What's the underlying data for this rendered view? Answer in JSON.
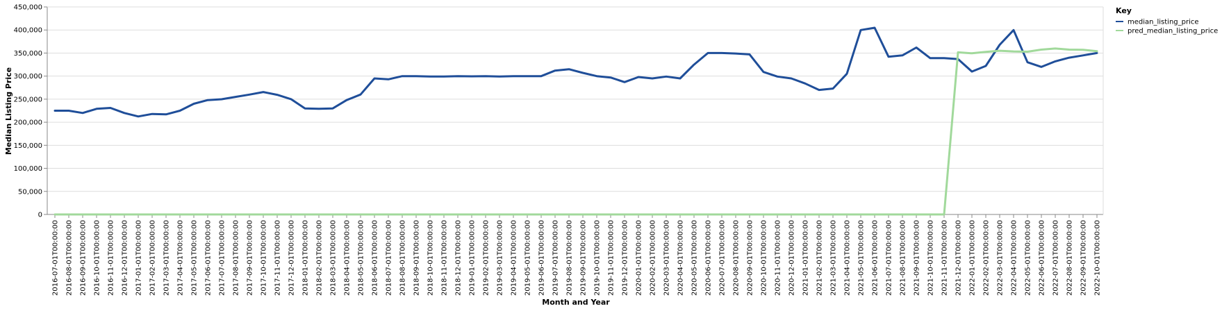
{
  "chart_data": {
    "type": "line",
    "title": "",
    "xlabel": "Month and Year",
    "ylabel": "Median Listing Price",
    "ylim": [
      0,
      450000
    ],
    "y_ticks": [
      "0",
      "50,000",
      "100,000",
      "150,000",
      "200,000",
      "250,000",
      "300,000",
      "350,000",
      "400,000",
      "450,000"
    ],
    "y_tick_values": [
      0,
      50000,
      100000,
      150000,
      200000,
      250000,
      300000,
      350000,
      400000,
      450000
    ],
    "grid": true,
    "legend_position": "right",
    "legend_title": "Key",
    "x": [
      "2016-07-01T00:00:00",
      "2016-08-01T00:00:00",
      "2016-09-01T00:00:00",
      "2016-10-01T00:00:00",
      "2016-11-01T00:00:00",
      "2016-12-01T00:00:00",
      "2017-01-01T00:00:00",
      "2017-02-01T00:00:00",
      "2017-03-01T00:00:00",
      "2017-04-01T00:00:00",
      "2017-05-01T00:00:00",
      "2017-06-01T00:00:00",
      "2017-07-01T00:00:00",
      "2017-08-01T00:00:00",
      "2017-09-01T00:00:00",
      "2017-10-01T00:00:00",
      "2017-11-01T00:00:00",
      "2017-12-01T00:00:00",
      "2018-01-01T00:00:00",
      "2018-02-01T00:00:00",
      "2018-03-01T00:00:00",
      "2018-04-01T00:00:00",
      "2018-05-01T00:00:00",
      "2018-06-01T00:00:00",
      "2018-07-01T00:00:00",
      "2018-08-01T00:00:00",
      "2018-09-01T00:00:00",
      "2018-10-01T00:00:00",
      "2018-11-01T00:00:00",
      "2018-12-01T00:00:00",
      "2019-01-01T00:00:00",
      "2019-02-01T00:00:00",
      "2019-03-01T00:00:00",
      "2019-04-01T00:00:00",
      "2019-05-01T00:00:00",
      "2019-06-01T00:00:00",
      "2019-07-01T00:00:00",
      "2019-08-01T00:00:00",
      "2019-09-01T00:00:00",
      "2019-10-01T00:00:00",
      "2019-11-01T00:00:00",
      "2019-12-01T00:00:00",
      "2020-01-01T00:00:00",
      "2020-02-01T00:00:00",
      "2020-03-01T00:00:00",
      "2020-04-01T00:00:00",
      "2020-05-01T00:00:00",
      "2020-06-01T00:00:00",
      "2020-07-01T00:00:00",
      "2020-08-01T00:00:00",
      "2020-09-01T00:00:00",
      "2020-10-01T00:00:00",
      "2020-11-01T00:00:00",
      "2020-12-01T00:00:00",
      "2021-01-01T00:00:00",
      "2021-02-01T00:00:00",
      "2021-03-01T00:00:00",
      "2021-04-01T00:00:00",
      "2021-05-01T00:00:00",
      "2021-06-01T00:00:00",
      "2021-07-01T00:00:00",
      "2021-08-01T00:00:00",
      "2021-09-01T00:00:00",
      "2021-10-01T00:00:00",
      "2021-11-01T00:00:00",
      "2021-12-01T00:00:00",
      "2022-01-01T00:00:00",
      "2022-02-01T00:00:00",
      "2022-03-01T00:00:00",
      "2022-04-01T00:00:00",
      "2022-05-01T00:00:00",
      "2022-06-01T00:00:00",
      "2022-07-01T00:00:00",
      "2022-08-01T00:00:00",
      "2022-09-01T00:00:00",
      "2022-10-01T00:00:00"
    ],
    "series": [
      {
        "name": "median_listing_price",
        "color": "#1f4e99",
        "values": [
          225000,
          225000,
          220000,
          229000,
          231000,
          220000,
          212500,
          218000,
          217000,
          225000,
          240000,
          248000,
          249900,
          255000,
          259900,
          265500,
          259500,
          250000,
          230000,
          229000,
          230000,
          248000,
          260000,
          295000,
          293000,
          299900,
          299900,
          299000,
          299000,
          299900,
          299500,
          299900,
          299000,
          299900,
          299900,
          299900,
          312000,
          315000,
          307000,
          299900,
          297000,
          287000,
          298000,
          295000,
          299000,
          295000,
          325000,
          350000,
          350000,
          349000,
          347000,
          309000,
          299000,
          295000,
          284000,
          270000,
          273000,
          305000,
          399900,
          404900,
          342000,
          345000,
          362000,
          339000,
          339000,
          337000,
          309900,
          322000,
          368000,
          399900,
          330000,
          319900,
          332000,
          340000,
          345000,
          350000
        ]
      },
      {
        "name": "pred_median_listing_price",
        "color": "#a1d99b",
        "values": [
          0,
          0,
          0,
          0,
          0,
          0,
          0,
          0,
          0,
          0,
          0,
          0,
          0,
          0,
          0,
          0,
          0,
          0,
          0,
          0,
          0,
          0,
          0,
          0,
          0,
          0,
          0,
          0,
          0,
          0,
          0,
          0,
          0,
          0,
          0,
          0,
          0,
          0,
          0,
          0,
          0,
          0,
          0,
          0,
          0,
          0,
          0,
          0,
          0,
          0,
          0,
          0,
          0,
          0,
          0,
          0,
          0,
          0,
          0,
          0,
          0,
          0,
          0,
          0,
          0,
          351500,
          349500,
          352500,
          355000,
          353500,
          353000,
          357500,
          359900,
          357500,
          357000,
          354000
        ]
      }
    ]
  }
}
